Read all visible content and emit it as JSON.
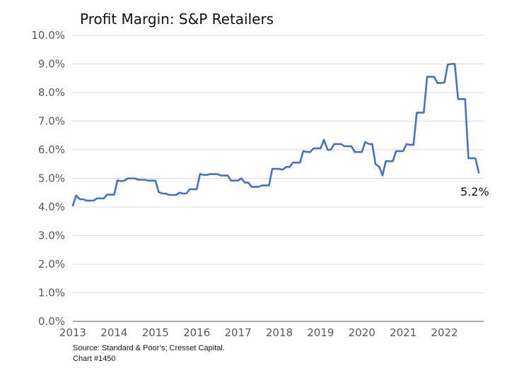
{
  "chart_data": {
    "type": "line",
    "title": "Profit Margin: S&P Retailers",
    "xlabel": "",
    "ylabel": "",
    "ylim": [
      0,
      10
    ],
    "xlim": [
      2013,
      2022.95
    ],
    "y_ticks": [
      "0.0%",
      "1.0%",
      "2.0%",
      "3.0%",
      "4.0%",
      "5.0%",
      "6.0%",
      "7.0%",
      "8.0%",
      "9.0%",
      "10.0%"
    ],
    "x_ticks": [
      "2013",
      "2014",
      "2015",
      "2016",
      "2017",
      "2018",
      "2019",
      "2020",
      "2021",
      "2022"
    ],
    "grid": "horizontal",
    "color": "#4472c4",
    "end_label": "5.2%",
    "series": [
      {
        "points": [
          [
            2013.0,
            4.05
          ],
          [
            2013.08,
            4.4
          ],
          [
            2013.17,
            4.27
          ],
          [
            2013.25,
            4.27
          ],
          [
            2013.33,
            4.22
          ],
          [
            2013.42,
            4.22
          ],
          [
            2013.5,
            4.22
          ],
          [
            2013.58,
            4.3
          ],
          [
            2013.67,
            4.3
          ],
          [
            2013.75,
            4.3
          ],
          [
            2013.83,
            4.43
          ],
          [
            2013.92,
            4.43
          ],
          [
            2014.0,
            4.43
          ],
          [
            2014.08,
            4.93
          ],
          [
            2014.17,
            4.9
          ],
          [
            2014.25,
            4.92
          ],
          [
            2014.33,
            5.0
          ],
          [
            2014.42,
            5.0
          ],
          [
            2014.5,
            5.0
          ],
          [
            2014.58,
            4.95
          ],
          [
            2014.67,
            4.95
          ],
          [
            2014.75,
            4.95
          ],
          [
            2014.83,
            4.92
          ],
          [
            2014.92,
            4.92
          ],
          [
            2015.0,
            4.92
          ],
          [
            2015.08,
            4.52
          ],
          [
            2015.17,
            4.47
          ],
          [
            2015.25,
            4.47
          ],
          [
            2015.33,
            4.42
          ],
          [
            2015.42,
            4.42
          ],
          [
            2015.5,
            4.42
          ],
          [
            2015.58,
            4.5
          ],
          [
            2015.67,
            4.47
          ],
          [
            2015.75,
            4.47
          ],
          [
            2015.83,
            4.62
          ],
          [
            2015.92,
            4.62
          ],
          [
            2016.0,
            4.62
          ],
          [
            2016.08,
            5.15
          ],
          [
            2016.17,
            5.12
          ],
          [
            2016.25,
            5.12
          ],
          [
            2016.33,
            5.15
          ],
          [
            2016.42,
            5.15
          ],
          [
            2016.5,
            5.15
          ],
          [
            2016.58,
            5.1
          ],
          [
            2016.67,
            5.1
          ],
          [
            2016.75,
            5.1
          ],
          [
            2016.83,
            4.92
          ],
          [
            2016.92,
            4.92
          ],
          [
            2017.0,
            4.92
          ],
          [
            2017.08,
            5.0
          ],
          [
            2017.17,
            4.85
          ],
          [
            2017.25,
            4.85
          ],
          [
            2017.33,
            4.7
          ],
          [
            2017.42,
            4.7
          ],
          [
            2017.5,
            4.7
          ],
          [
            2017.58,
            4.75
          ],
          [
            2017.67,
            4.75
          ],
          [
            2017.75,
            4.75
          ],
          [
            2017.83,
            5.33
          ],
          [
            2017.92,
            5.33
          ],
          [
            2018.0,
            5.33
          ],
          [
            2018.08,
            5.3
          ],
          [
            2018.17,
            5.4
          ],
          [
            2018.25,
            5.4
          ],
          [
            2018.33,
            5.55
          ],
          [
            2018.42,
            5.55
          ],
          [
            2018.5,
            5.55
          ],
          [
            2018.58,
            5.95
          ],
          [
            2018.67,
            5.92
          ],
          [
            2018.75,
            5.92
          ],
          [
            2018.83,
            6.05
          ],
          [
            2018.92,
            6.05
          ],
          [
            2019.0,
            6.05
          ],
          [
            2019.08,
            6.35
          ],
          [
            2019.17,
            6.0
          ],
          [
            2019.25,
            6.0
          ],
          [
            2019.33,
            6.2
          ],
          [
            2019.42,
            6.2
          ],
          [
            2019.5,
            6.2
          ],
          [
            2019.58,
            6.12
          ],
          [
            2019.67,
            6.12
          ],
          [
            2019.75,
            6.12
          ],
          [
            2019.83,
            5.92
          ],
          [
            2019.92,
            5.92
          ],
          [
            2020.0,
            5.92
          ],
          [
            2020.08,
            6.27
          ],
          [
            2020.17,
            6.2
          ],
          [
            2020.25,
            6.2
          ],
          [
            2020.33,
            5.5
          ],
          [
            2020.42,
            5.4
          ],
          [
            2020.5,
            5.1
          ],
          [
            2020.58,
            5.6
          ],
          [
            2020.67,
            5.6
          ],
          [
            2020.75,
            5.6
          ],
          [
            2020.83,
            5.95
          ],
          [
            2020.92,
            5.95
          ],
          [
            2021.0,
            5.95
          ],
          [
            2021.08,
            6.2
          ],
          [
            2021.17,
            6.17
          ],
          [
            2021.25,
            6.17
          ],
          [
            2021.33,
            7.3
          ],
          [
            2021.42,
            7.3
          ],
          [
            2021.5,
            7.3
          ],
          [
            2021.58,
            8.55
          ],
          [
            2021.67,
            8.55
          ],
          [
            2021.75,
            8.55
          ],
          [
            2021.83,
            8.33
          ],
          [
            2021.92,
            8.33
          ],
          [
            2022.0,
            8.35
          ],
          [
            2022.08,
            8.98
          ],
          [
            2022.17,
            9.0
          ],
          [
            2022.25,
            9.0
          ],
          [
            2022.33,
            7.77
          ],
          [
            2022.42,
            7.77
          ],
          [
            2022.5,
            7.77
          ],
          [
            2022.58,
            5.7
          ],
          [
            2022.67,
            5.7
          ],
          [
            2022.75,
            5.7
          ],
          [
            2022.83,
            5.2
          ]
        ]
      }
    ]
  },
  "footnote": {
    "source": "Source: Standard & Poor’s; Cresset Capital.",
    "chart_id": "Chart #1450"
  }
}
